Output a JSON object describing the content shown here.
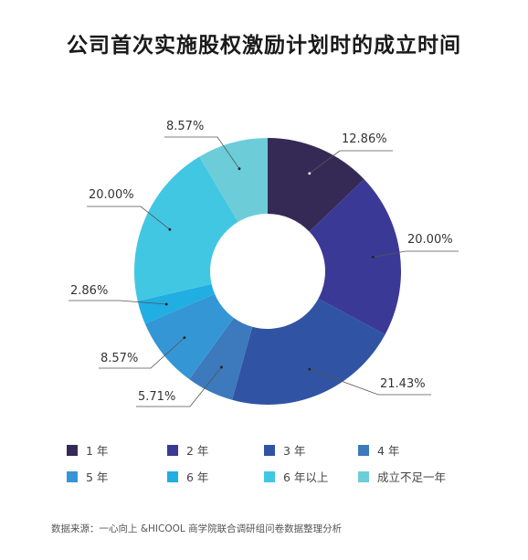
{
  "title": "公司首次实施股权激励计划时的成立时间",
  "source": "数据来源：一心向上 &HICOOL 商学院联合调研组问卷数据整理分析",
  "chart_data": {
    "type": "pie",
    "style": "donut",
    "title": "公司首次实施股权激励计划时的成立时间",
    "legend_position": "bottom",
    "categories": [
      "1 年",
      "2 年",
      "3 年",
      "4 年",
      "5 年",
      "6 年",
      "6 年以上",
      "成立不足一年"
    ],
    "values": [
      12.86,
      20.0,
      21.43,
      5.71,
      8.57,
      2.86,
      20.0,
      8.57
    ],
    "labels": [
      "12.86%",
      "20.00%",
      "21.43%",
      "5.71%",
      "8.57%",
      "2.86%",
      "20.00%",
      "8.57%"
    ],
    "colors": [
      "#352a56",
      "#3a3a96",
      "#3153a3",
      "#3c79bd",
      "#3596d6",
      "#21aee2",
      "#42c7e3",
      "#6ccdd9"
    ]
  }
}
